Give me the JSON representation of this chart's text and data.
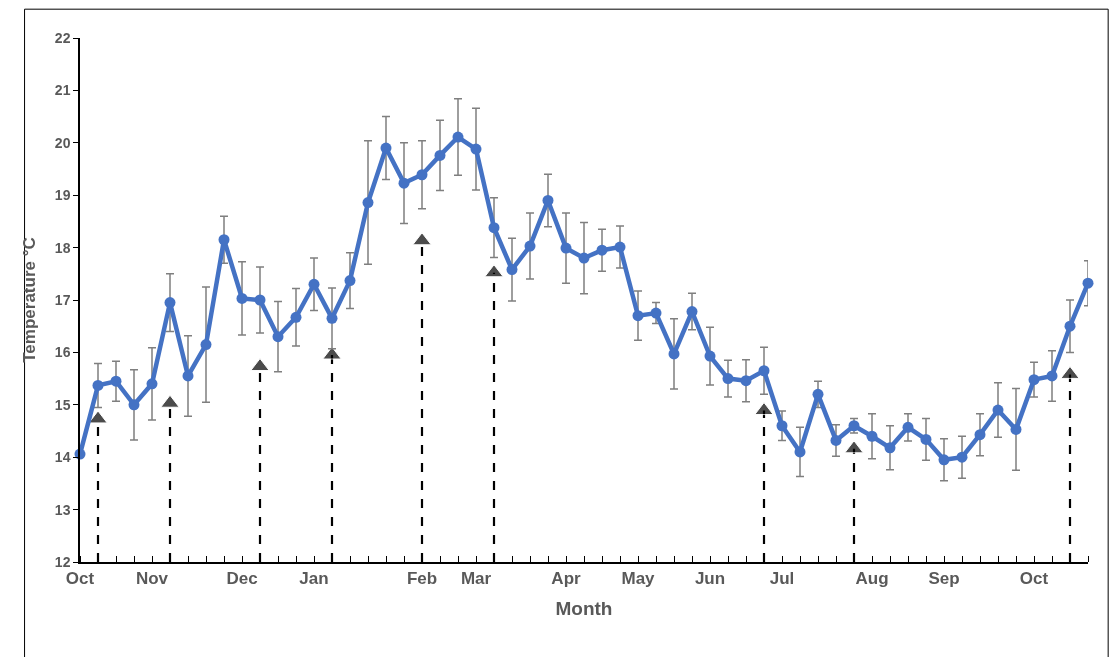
{
  "chart_data": {
    "type": "line",
    "xlabel": "Month",
    "ylabel": "Temperature °C",
    "categories": [
      "Oct",
      null,
      null,
      null,
      "Nov",
      null,
      null,
      null,
      null,
      "Dec",
      null,
      null,
      null,
      "Jan",
      null,
      null,
      null,
      null,
      null,
      "Feb",
      null,
      null,
      "Mar",
      null,
      null,
      null,
      null,
      "Apr",
      null,
      null,
      null,
      "May",
      null,
      null,
      null,
      "Jun",
      null,
      null,
      null,
      "Jul",
      null,
      null,
      null,
      null,
      "Aug",
      null,
      null,
      null,
      "Sep",
      null,
      null,
      null,
      null,
      "Oct",
      null,
      null,
      null
    ],
    "series": [
      {
        "color": "#4472c4",
        "marker": "circle",
        "line_style": "solid",
        "values": [
          14.06,
          15.37,
          15.45,
          15.0,
          15.4,
          16.95,
          15.55,
          16.15,
          18.15,
          17.03,
          17.0,
          16.3,
          16.67,
          17.3,
          16.65,
          17.37,
          18.86,
          19.9,
          19.23,
          19.39,
          19.76,
          20.11,
          19.88,
          18.38,
          17.58,
          18.03,
          18.9,
          17.99,
          17.8,
          17.95,
          18.01,
          16.7,
          16.75,
          15.97,
          16.78,
          15.93,
          15.5,
          15.46,
          15.65,
          14.6,
          14.1,
          15.2,
          14.32,
          14.6,
          14.4,
          14.18,
          14.57,
          14.34,
          13.95,
          14.0,
          14.43,
          14.9,
          14.53,
          15.48,
          15.55,
          16.5,
          17.32
        ],
        "errors": [
          null,
          0.42,
          0.38,
          0.67,
          0.69,
          0.55,
          0.77,
          1.1,
          0.45,
          0.7,
          0.63,
          0.67,
          0.55,
          0.5,
          0.58,
          0.53,
          1.18,
          0.6,
          0.77,
          0.65,
          0.67,
          0.73,
          0.78,
          0.57,
          0.6,
          0.63,
          0.5,
          0.67,
          0.68,
          0.4,
          0.4,
          0.47,
          0.2,
          0.67,
          0.35,
          0.55,
          0.35,
          0.4,
          0.45,
          0.28,
          0.47,
          0.25,
          0.3,
          0.14,
          0.43,
          0.42,
          0.26,
          0.4,
          0.4,
          0.4,
          0.4,
          0.52,
          0.78,
          0.33,
          0.48,
          0.5,
          0.43
        ]
      },
      {
        "type": "lollipop",
        "color": "#000000",
        "marker": "triangle",
        "line_style": "dashed",
        "values": [
          null,
          14.73,
          null,
          null,
          null,
          15.03,
          null,
          null,
          null,
          null,
          15.73,
          null,
          null,
          null,
          15.95,
          null,
          null,
          null,
          null,
          18.13,
          null,
          null,
          null,
          17.52,
          null,
          null,
          null,
          null,
          null,
          null,
          null,
          null,
          null,
          null,
          null,
          null,
          null,
          null,
          14.89,
          null,
          null,
          null,
          null,
          14.16,
          null,
          null,
          null,
          null,
          null,
          null,
          null,
          null,
          null,
          null,
          null,
          15.58,
          null
        ]
      }
    ],
    "ylim": [
      12,
      22
    ],
    "yticks": [
      12,
      13,
      14,
      15,
      16,
      17,
      18,
      19,
      20,
      21,
      22
    ]
  }
}
